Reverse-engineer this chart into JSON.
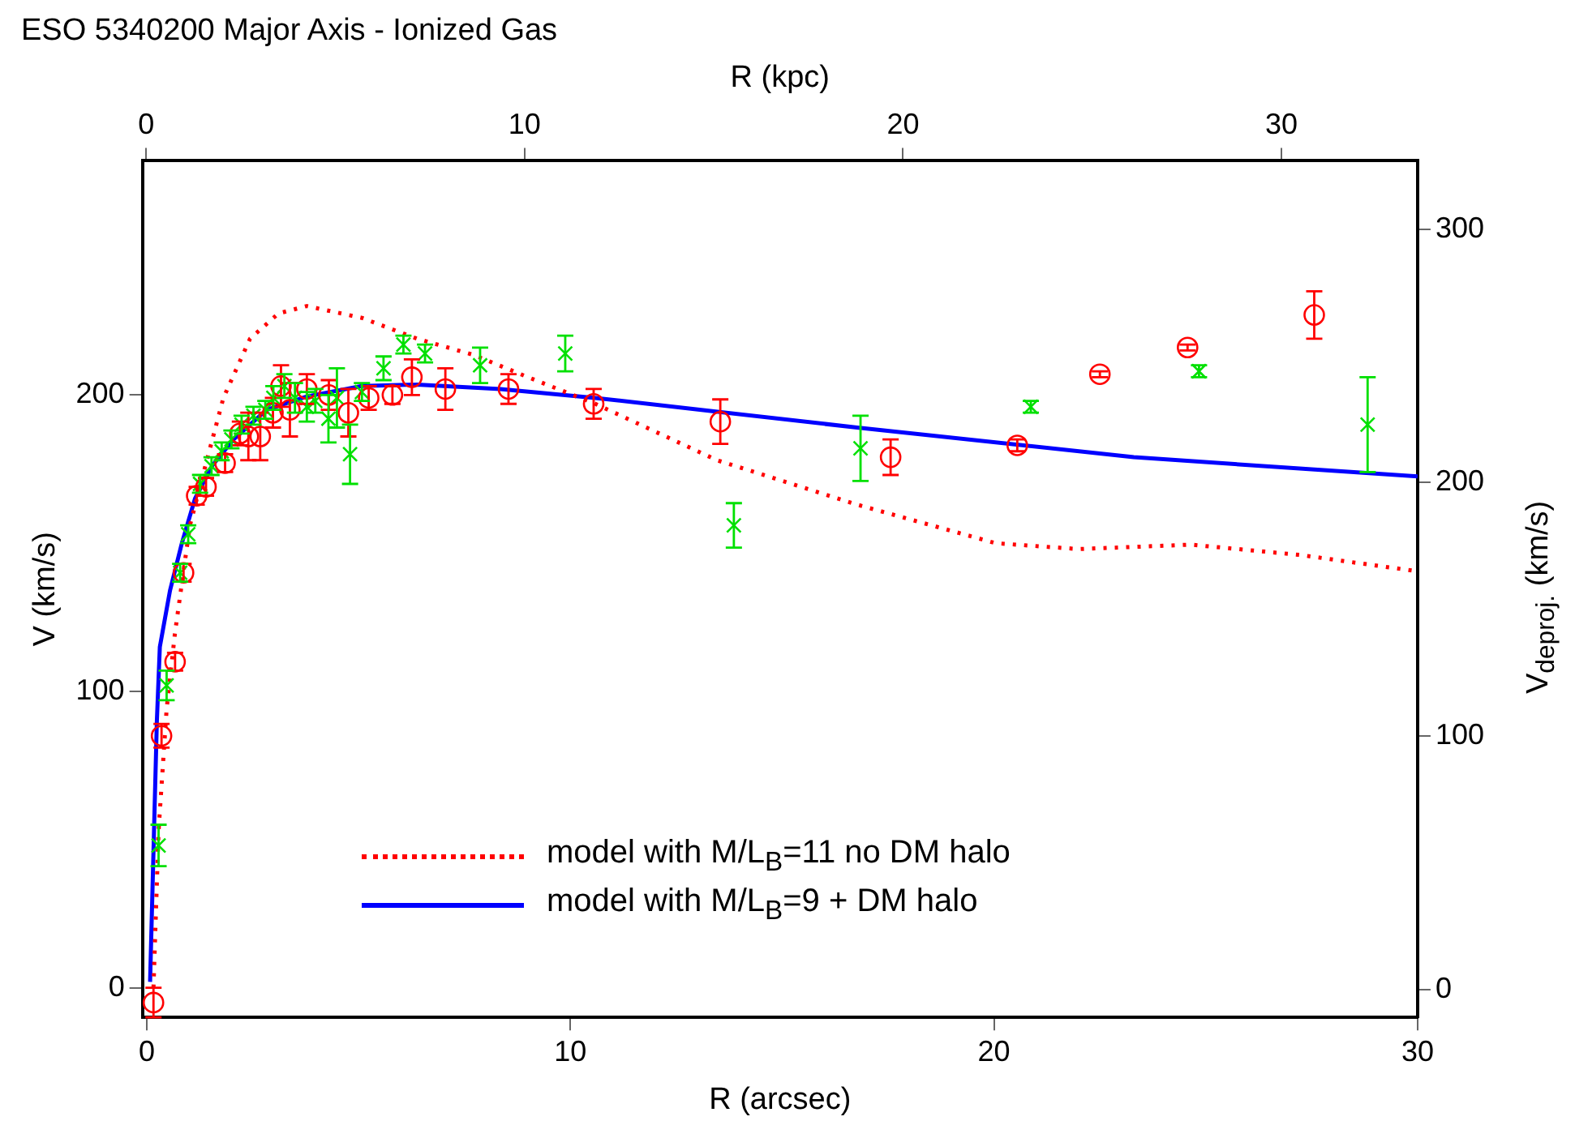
{
  "chart_data": {
    "type": "scatter",
    "title": "ESO 5340200 Major Axis - Ionized Gas",
    "xlabel": "R (arcsec)",
    "ylabel": "V (km/s)",
    "x2label": "R (kpc)",
    "y2label": "V$_{deproj.}$ (km/s)",
    "xlim": [
      -0.1,
      30
    ],
    "xticks": [
      0,
      10,
      20,
      30
    ],
    "ylim": [
      -10,
      279
    ],
    "yticks": [
      0,
      100,
      200
    ],
    "x2lim": [
      -0.1,
      33.6
    ],
    "x2ticks": [
      0,
      10,
      20,
      30
    ],
    "y2lim": [
      -11,
      327
    ],
    "y2ticks": [
      0,
      100,
      200,
      300
    ],
    "grid": false,
    "legend": "bottom",
    "series": [
      {
        "type": "scatter",
        "marker": "circle",
        "color": "#ff0000",
        "x": [
          0.16,
          0.35,
          0.67,
          0.87,
          1.18,
          1.4,
          1.85,
          2.2,
          2.4,
          2.68,
          2.98,
          3.17,
          3.38,
          3.78,
          4.3,
          4.76,
          5.24,
          5.8,
          6.26,
          7.05,
          8.54,
          10.55,
          13.54,
          17.56,
          20.55,
          22.5,
          24.57,
          27.56
        ],
        "values": [
          -5,
          85,
          110,
          140,
          166,
          169,
          177,
          187,
          186,
          186,
          194,
          203,
          195,
          202,
          200,
          194,
          199,
          200,
          206,
          202,
          202,
          197,
          191,
          179,
          183,
          207,
          216,
          227
        ],
        "errors": [
          5,
          4,
          3,
          3,
          3,
          3,
          3,
          4,
          8,
          8,
          5,
          7,
          9,
          5,
          5,
          8,
          4,
          3,
          6,
          7,
          5,
          5,
          7.5,
          6,
          2,
          1,
          1,
          8
        ]
      },
      {
        "type": "scatter",
        "marker": "cross",
        "color": "#00e000",
        "x": [
          0.28,
          0.47,
          0.79,
          0.98,
          1.26,
          1.53,
          1.77,
          2.0,
          2.24,
          2.52,
          2.8,
          2.99,
          3.25,
          3.5,
          3.78,
          3.98,
          4.29,
          4.49,
          4.8,
          5.08,
          5.59,
          6.06,
          6.57,
          7.87,
          9.88,
          13.86,
          16.85,
          20.87,
          24.84,
          28.82
        ],
        "values": [
          48,
          102,
          140,
          153,
          170,
          176,
          181,
          185,
          190,
          193,
          195,
          199,
          203,
          199,
          196,
          198,
          192,
          199,
          180,
          201,
          209,
          217,
          214,
          210,
          214,
          156,
          182,
          196,
          208,
          190
        ],
        "errors": [
          7,
          5,
          3,
          3,
          3,
          3,
          3,
          3,
          3,
          3,
          3,
          4,
          4,
          5,
          5,
          4,
          8,
          10,
          10,
          3,
          4,
          3,
          3,
          6,
          6,
          7.5,
          11,
          2,
          2,
          16
        ]
      },
      {
        "type": "line",
        "name": "model with M/L$_{B}$=11 no DM halo",
        "marker": "none",
        "line_style": "dotted",
        "color": "#ff0000",
        "x": [
          0.16,
          0.28,
          0.47,
          0.67,
          1.02,
          1.42,
          1.81,
          2.44,
          3.11,
          3.78,
          5.08,
          6.38,
          7.72,
          9.0,
          10.59,
          13.46,
          16.77,
          20.04,
          22.0,
          24.65,
          27.24,
          30.0
        ],
        "values": [
          0,
          53,
          94,
          120,
          156,
          178,
          199,
          219,
          227.5,
          230,
          226,
          219,
          213.5,
          206,
          197,
          178,
          163,
          150,
          148,
          149.5,
          146,
          140.5
        ]
      },
      {
        "type": "line",
        "name": "model with M/L$_{B}$=9 + DM halo",
        "marker": "none",
        "line_style": "solid",
        "color": "#0000ff",
        "x": [
          0.08,
          0.24,
          0.31,
          0.55,
          0.83,
          1.14,
          1.54,
          2.05,
          2.83,
          3.78,
          5.08,
          6.38,
          8.35,
          10.59,
          16.77,
          23.3,
          30.0
        ],
        "values": [
          2,
          90,
          115,
          134,
          150,
          165,
          176,
          185,
          195,
          199.5,
          203,
          203.5,
          202,
          199,
          189,
          179,
          172.5
        ]
      }
    ]
  }
}
